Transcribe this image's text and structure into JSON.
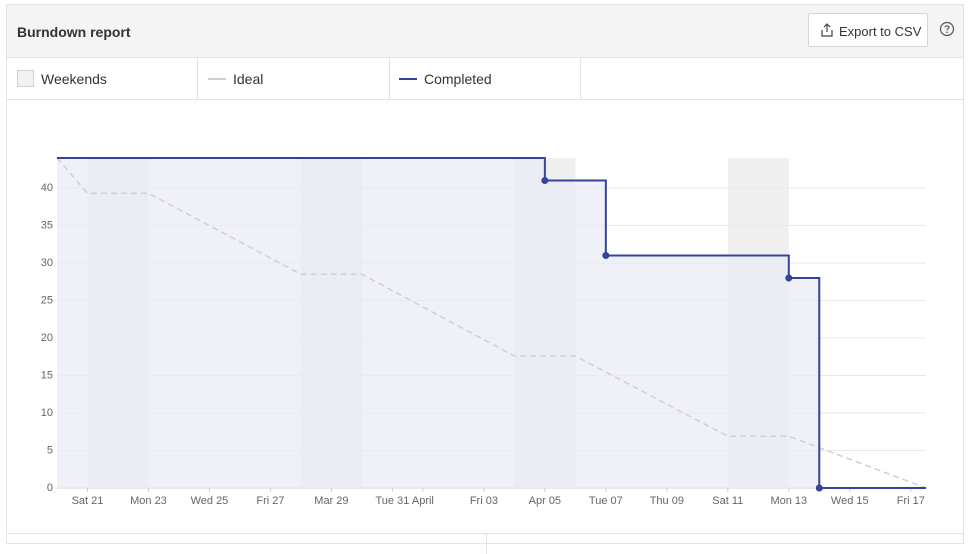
{
  "header": {
    "title": "Burndown report",
    "export": "Export to CSV"
  },
  "chart_data": {
    "type": "line",
    "weekends_label": "Weekends",
    "weekends": [
      [
        1,
        3
      ],
      [
        8,
        10
      ],
      [
        15,
        17
      ],
      [
        22,
        24
      ]
    ],
    "series": [
      {
        "name": "Ideal",
        "color": "#cfcfd6",
        "dashed": true,
        "x": [
          0,
          1,
          3,
          8,
          10,
          15,
          17,
          22,
          24,
          28.5
        ],
        "values": [
          44,
          39.3,
          39.3,
          28.5,
          28.5,
          17.6,
          17.6,
          6.9,
          6.9,
          0
        ]
      },
      {
        "name": "Completed",
        "color": "#34439b",
        "step": "after",
        "fill": "#ebebf7",
        "x": [
          0,
          16,
          18,
          24,
          25,
          28.5
        ],
        "values": [
          44,
          41,
          31,
          28,
          0,
          0
        ]
      }
    ],
    "xlim": [
      0,
      28.5
    ],
    "ylim": [
      0,
      44
    ],
    "xticks": [
      {
        "value": 1,
        "label": "Sat 21"
      },
      {
        "value": 3,
        "label": "Mon 23"
      },
      {
        "value": 5,
        "label": "Wed 25"
      },
      {
        "value": 7,
        "label": "Fri 27"
      },
      {
        "value": 9,
        "label": "Mar 29"
      },
      {
        "value": 11,
        "label": "Tue 31"
      },
      {
        "value": 12,
        "label": "April"
      },
      {
        "value": 14,
        "label": "Fri 03"
      },
      {
        "value": 16,
        "label": "Apr 05"
      },
      {
        "value": 18,
        "label": "Tue 07"
      },
      {
        "value": 20,
        "label": "Thu 09"
      },
      {
        "value": 22,
        "label": "Sat 11"
      },
      {
        "value": 24,
        "label": "Mon 13"
      },
      {
        "value": 26,
        "label": "Wed 15"
      },
      {
        "value": 28,
        "label": "Fri 17"
      }
    ],
    "yticks": [
      0,
      5,
      10,
      15,
      20,
      25,
      30,
      35,
      40
    ],
    "grid": true
  }
}
